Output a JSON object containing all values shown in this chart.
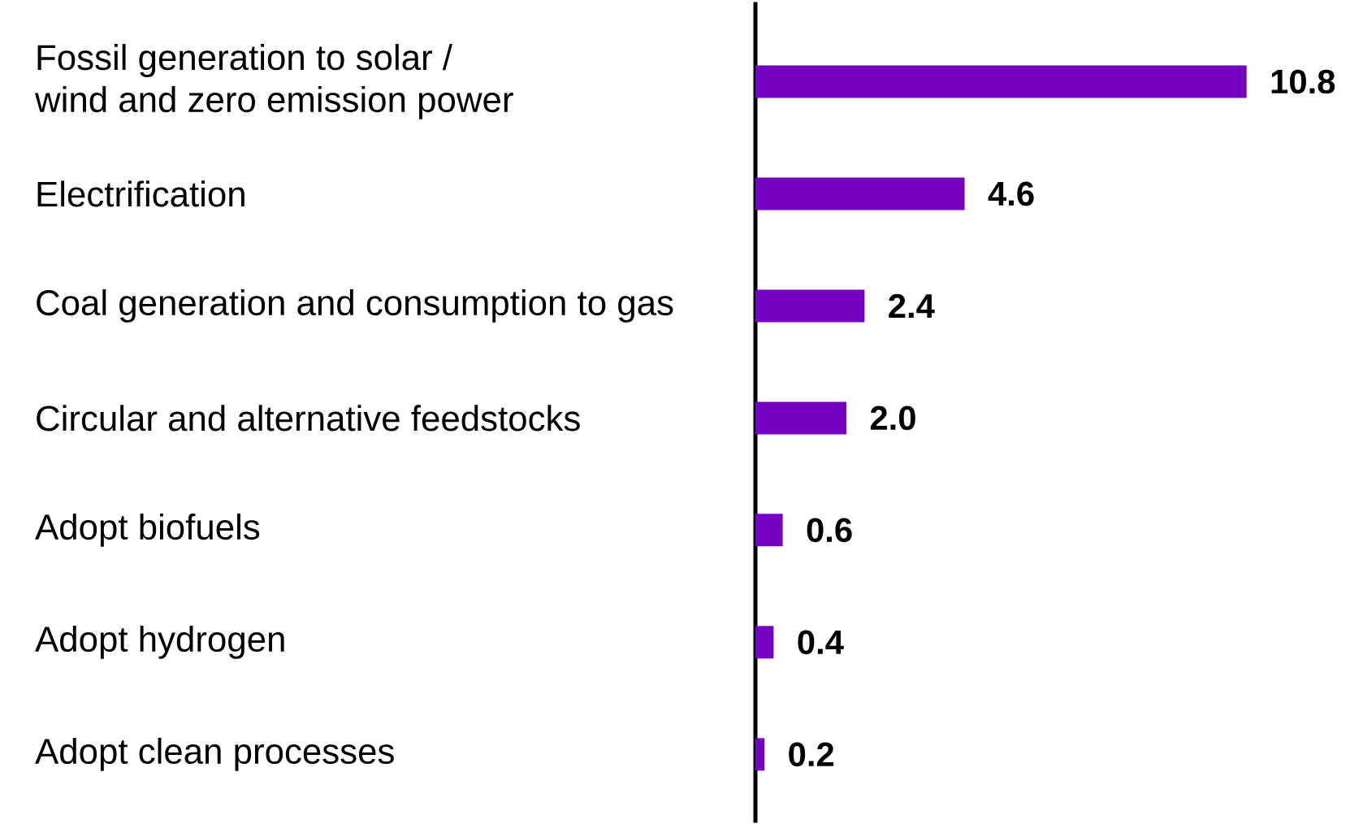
{
  "chart_data": {
    "type": "bar",
    "orientation": "horizontal",
    "categories": [
      "Fossil generation to solar / wind and zero emission power",
      "Electrification",
      "Coal generation and consumption to gas",
      "Circular and alternative feedstocks",
      "Adopt biofuels",
      "Adopt hydrogen",
      "Adopt clean processes"
    ],
    "values": [
      10.8,
      4.6,
      2.4,
      2.0,
      0.6,
      0.4,
      0.2
    ],
    "value_labels": [
      "10.8",
      "4.6",
      "2.4",
      "2.0",
      "0.6",
      "0.4",
      "0.2"
    ],
    "color": "#7500c0"
  }
}
